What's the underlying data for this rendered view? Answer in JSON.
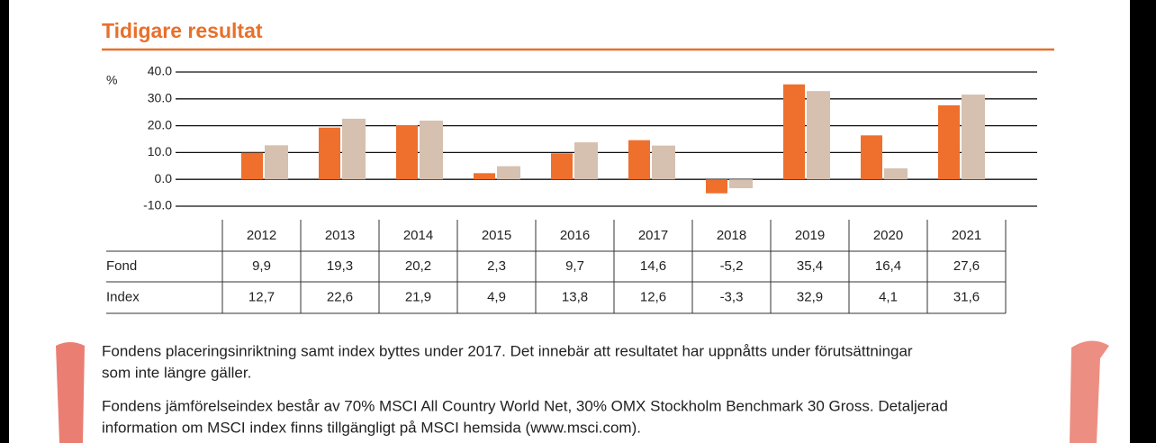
{
  "heading": "Tidigare resultat",
  "chart_data": {
    "type": "bar",
    "y_label": "%",
    "categories": [
      "2012",
      "2013",
      "2014",
      "2015",
      "2016",
      "2017",
      "2018",
      "2019",
      "2020",
      "2021"
    ],
    "series": [
      {
        "name": "Fond",
        "color": "#ef6f2d",
        "values": [
          9.9,
          19.3,
          20.2,
          2.3,
          9.7,
          14.6,
          -5.2,
          35.4,
          16.4,
          27.6
        ],
        "value_labels": [
          "9,9",
          "19,3",
          "20,2",
          "2,3",
          "9,7",
          "14,6",
          "-5,2",
          "35,4",
          "16,4",
          "27,6"
        ]
      },
      {
        "name": "Index",
        "color": "#d6c0af",
        "values": [
          12.7,
          22.6,
          21.9,
          4.9,
          13.8,
          12.6,
          -3.3,
          32.9,
          4.1,
          31.6
        ],
        "value_labels": [
          "12,7",
          "22,6",
          "21,9",
          "4,9",
          "13,8",
          "12,6",
          "-3,3",
          "32,9",
          "4,1",
          "31,6"
        ]
      }
    ],
    "ylim": [
      -10,
      40
    ],
    "yticks": [
      {
        "value": 40,
        "label": "40.0"
      },
      {
        "value": 30,
        "label": "30.0"
      },
      {
        "value": 20,
        "label": "20.0"
      },
      {
        "value": 10,
        "label": "10.0"
      },
      {
        "value": 0,
        "label": "0.0"
      },
      {
        "value": -10,
        "label": "-10.0"
      }
    ],
    "grid": true
  },
  "notes": [
    [
      "Fondens placeringsinriktning samt index byttes under 2017. Det innebär att resultatet har uppnåtts under förutsättningar",
      "som inte längre gäller."
    ],
    [
      "Fondens jämförelseindex består av 70% MSCI All Country World Net, 30% OMX Stockholm Benchmark 30 Gross. Detaljerad",
      "information om MSCI index finns tillgängligt på MSCI hemsida (www.msci.com)."
    ]
  ]
}
